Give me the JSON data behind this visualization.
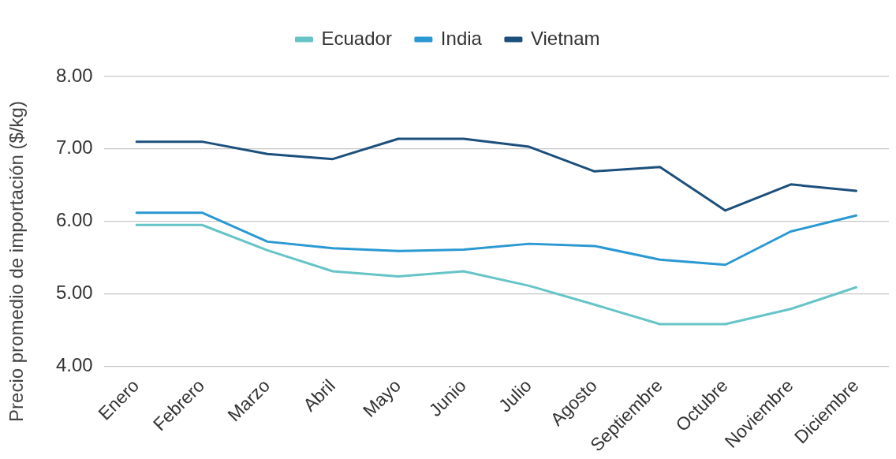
{
  "chart_data": {
    "type": "line",
    "ylabel": "Precio promedio de importación ($/kg)",
    "categories": [
      "Enero",
      "Febrero",
      "Marzo",
      "Abril",
      "Mayo",
      "Junio",
      "Julio",
      "Agosto",
      "Septiembre",
      "Octubre",
      "Noviembre",
      "Diciembre"
    ],
    "series": [
      {
        "name": "Ecuador",
        "color": "#66c4c7",
        "values": [
          5.95,
          5.95,
          5.6,
          5.31,
          5.24,
          5.31,
          5.11,
          4.85,
          4.58,
          4.58,
          4.79,
          5.09
        ]
      },
      {
        "name": "India",
        "color": "#2a98d2",
        "values": [
          6.12,
          6.12,
          5.72,
          5.63,
          5.59,
          5.61,
          5.69,
          5.66,
          5.47,
          5.4,
          5.86,
          6.08
        ]
      },
      {
        "name": "Vietnam",
        "color": "#1c4f7c",
        "values": [
          7.1,
          7.1,
          6.93,
          6.86,
          7.14,
          7.14,
          7.03,
          6.69,
          6.75,
          6.15,
          6.51,
          6.42
        ]
      }
    ],
    "ylim": [
      4,
      8
    ],
    "yticks": [
      {
        "value": 4,
        "label": "4.00"
      },
      {
        "value": 5,
        "label": "5.00"
      },
      {
        "value": 6,
        "label": "6.00"
      },
      {
        "value": 7,
        "label": "7.00"
      },
      {
        "value": 8,
        "label": "8.00"
      }
    ],
    "grid": "y",
    "legend": "top",
    "marker": "none",
    "line_style": "solid"
  }
}
